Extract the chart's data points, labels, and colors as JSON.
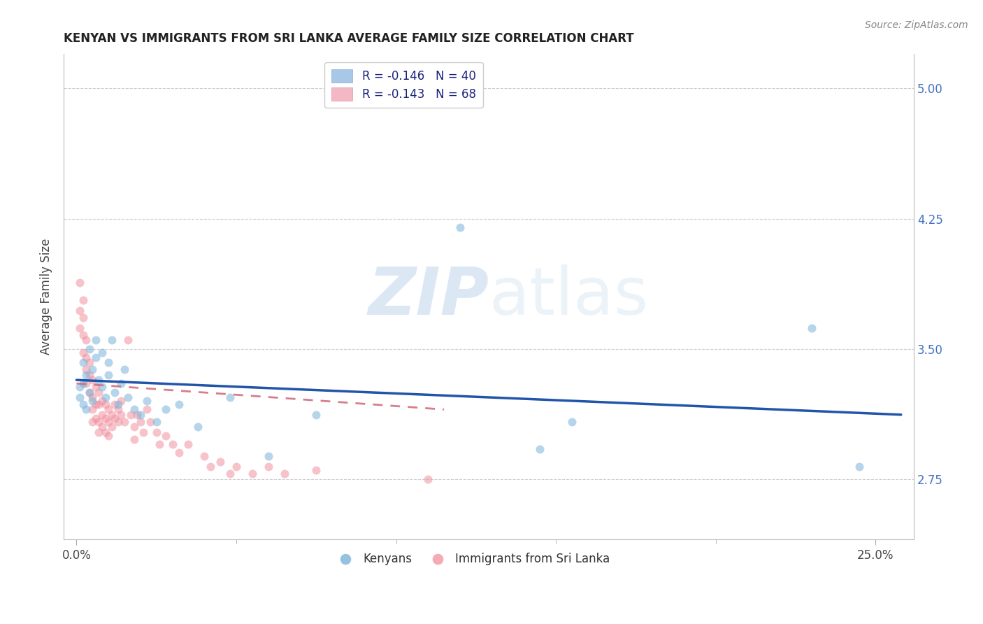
{
  "title": "KENYAN VS IMMIGRANTS FROM SRI LANKA AVERAGE FAMILY SIZE CORRELATION CHART",
  "source": "Source: ZipAtlas.com",
  "ylabel": "Average Family Size",
  "xlabel_ticks": [
    "0.0%",
    "25.0%"
  ],
  "xlabel_vals": [
    0.0,
    0.25
  ],
  "xlabel_minor_vals": [
    0.05,
    0.1,
    0.15,
    0.2
  ],
  "ylabel_ticks": [
    2.75,
    3.5,
    4.25,
    5.0
  ],
  "ylim": [
    2.4,
    5.2
  ],
  "xlim": [
    -0.004,
    0.262
  ],
  "kenyan_color": "#7ab3d9",
  "srilanka_color": "#f08898",
  "kenyan_line_color": "#2255aa",
  "srilanka_line_color": "#d06878",
  "background_color": "#ffffff",
  "grid_color": "#c8c8c8",
  "title_color": "#222222",
  "right_tick_color": "#4472c4",
  "watermark_zip": "ZIP",
  "watermark_atlas": "atlas",
  "kenyan_x": [
    0.001,
    0.001,
    0.002,
    0.002,
    0.002,
    0.003,
    0.003,
    0.004,
    0.004,
    0.005,
    0.005,
    0.006,
    0.006,
    0.007,
    0.008,
    0.008,
    0.009,
    0.01,
    0.01,
    0.011,
    0.012,
    0.013,
    0.014,
    0.015,
    0.016,
    0.018,
    0.02,
    0.022,
    0.025,
    0.028,
    0.032,
    0.038,
    0.048,
    0.06,
    0.075,
    0.12,
    0.145,
    0.155,
    0.23,
    0.245
  ],
  "kenyan_y": [
    3.22,
    3.28,
    3.18,
    3.3,
    3.42,
    3.15,
    3.35,
    3.25,
    3.5,
    3.2,
    3.38,
    3.45,
    3.55,
    3.32,
    3.28,
    3.48,
    3.22,
    3.35,
    3.42,
    3.55,
    3.25,
    3.18,
    3.3,
    3.38,
    3.22,
    3.15,
    3.12,
    3.2,
    3.08,
    3.15,
    3.18,
    3.05,
    3.22,
    2.88,
    3.12,
    4.2,
    2.92,
    3.08,
    3.62,
    2.82
  ],
  "srilanka_x": [
    0.001,
    0.001,
    0.001,
    0.002,
    0.002,
    0.002,
    0.002,
    0.003,
    0.003,
    0.003,
    0.003,
    0.004,
    0.004,
    0.004,
    0.005,
    0.005,
    0.005,
    0.005,
    0.006,
    0.006,
    0.006,
    0.007,
    0.007,
    0.007,
    0.007,
    0.008,
    0.008,
    0.008,
    0.009,
    0.009,
    0.009,
    0.01,
    0.01,
    0.01,
    0.011,
    0.011,
    0.012,
    0.012,
    0.013,
    0.013,
    0.014,
    0.014,
    0.015,
    0.016,
    0.017,
    0.018,
    0.018,
    0.019,
    0.02,
    0.021,
    0.022,
    0.023,
    0.025,
    0.026,
    0.028,
    0.03,
    0.032,
    0.035,
    0.04,
    0.042,
    0.045,
    0.048,
    0.05,
    0.055,
    0.06,
    0.065,
    0.075,
    0.11
  ],
  "srilanka_y": [
    3.88,
    3.72,
    3.62,
    3.78,
    3.68,
    3.58,
    3.48,
    3.55,
    3.45,
    3.38,
    3.3,
    3.42,
    3.35,
    3.25,
    3.32,
    3.22,
    3.15,
    3.08,
    3.28,
    3.18,
    3.1,
    3.25,
    3.18,
    3.08,
    3.02,
    3.2,
    3.12,
    3.05,
    3.18,
    3.1,
    3.02,
    3.15,
    3.08,
    3.0,
    3.12,
    3.05,
    3.18,
    3.1,
    3.15,
    3.08,
    3.2,
    3.12,
    3.08,
    3.55,
    3.12,
    3.05,
    2.98,
    3.12,
    3.08,
    3.02,
    3.15,
    3.08,
    3.02,
    2.95,
    3.0,
    2.95,
    2.9,
    2.95,
    2.88,
    2.82,
    2.85,
    2.78,
    2.82,
    2.78,
    2.82,
    2.78,
    2.8,
    2.75
  ],
  "kenyan_scatter_size": 75,
  "srilanka_scatter_size": 75,
  "kenyan_scatter_alpha": 0.55,
  "srilanka_scatter_alpha": 0.5,
  "kenyan_line_xstart": 0.0,
  "kenyan_line_xend": 0.258,
  "kenyan_line_ystart": 3.32,
  "kenyan_line_yend": 3.12,
  "srilanka_line_xstart": 0.0,
  "srilanka_line_xend": 0.115,
  "srilanka_line_ystart": 3.3,
  "srilanka_line_yend": 3.15
}
